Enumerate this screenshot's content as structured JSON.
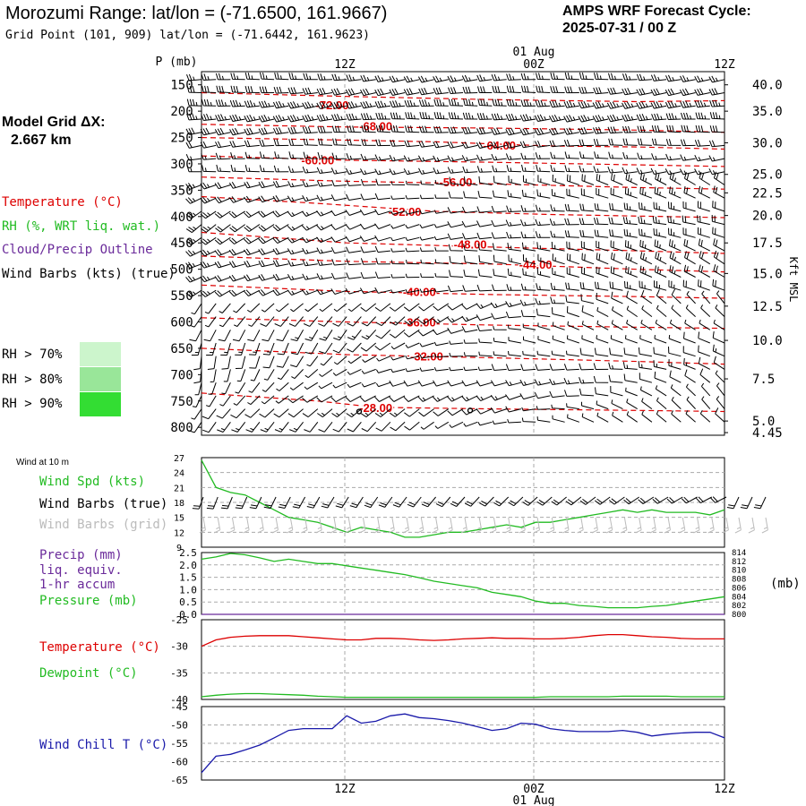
{
  "header": {
    "title": "Morozumi Range:  lat/lon = (-71.6500, 161.9667)",
    "grid_point": "Grid Point (101, 909) lat/lon = (-71.6442, 161.9623)",
    "cycle_label": "AMPS WRF Forecast Cycle:",
    "cycle_value": "2025-07-31 / 00  Z",
    "model_grid_label": "Model Grid ΔX:",
    "model_grid_value": "2.667 km"
  },
  "colors": {
    "temperature": "#dd0000",
    "rh": "#22bb22",
    "cloud": "#6a2a9a",
    "wind": "#000000",
    "grid": "#aaaaaa",
    "windchill": "#1a1aaa",
    "rh70": "#ccf5cc",
    "rh80": "#99e699",
    "rh90": "#33dd33"
  },
  "legend": {
    "temperature": "Temperature (°C)",
    "rh": "RH (%, WRT liq. wat.)",
    "cloud": "Cloud/Precip Outline",
    "wind": "Wind Barbs (kts) (true)",
    "rh70": "RH > 70%",
    "rh80": "RH > 80%",
    "rh90": "RH > 90%"
  },
  "time_axis": {
    "ticks": [
      "12Z",
      "00Z",
      "12Z"
    ],
    "date_label": "01 Aug"
  },
  "chart_data": [
    {
      "type": "line",
      "panel": "upper-air cross-section",
      "ylabel": "P (mb)",
      "y2label": "Kft MSL",
      "y_ticks": [
        150,
        200,
        250,
        300,
        350,
        400,
        450,
        500,
        550,
        600,
        650,
        700,
        750,
        800
      ],
      "kft_ticks": [
        {
          "p": 150,
          "label": "40.0"
        },
        {
          "p": 200,
          "label": "35.0"
        },
        {
          "p": 260,
          "label": "30.0"
        },
        {
          "p": 320,
          "label": "25.0"
        },
        {
          "p": 355,
          "label": "22.5"
        },
        {
          "p": 398,
          "label": "20.0"
        },
        {
          "p": 450,
          "label": "17.5"
        },
        {
          "p": 508,
          "label": "15.0"
        },
        {
          "p": 570,
          "label": "12.5"
        },
        {
          "p": 635,
          "label": "10.0"
        },
        {
          "p": 708,
          "label": "7.5"
        },
        {
          "p": 788,
          "label": "5.0"
        },
        {
          "p": 810,
          "label": "4.45"
        }
      ],
      "temperature_contours": [
        {
          "label": "-72.00",
          "label_at": [
            9,
            188
          ],
          "points": [
            [
              0,
              165
            ],
            [
              10,
              172
            ],
            [
              20,
              178
            ],
            [
              30,
              182
            ],
            [
              36,
              180
            ]
          ]
        },
        {
          "label": "-68.00",
          "label_at": [
            12,
            228
          ],
          "points": [
            [
              0,
              225
            ],
            [
              10,
              230
            ],
            [
              20,
              232
            ],
            [
              30,
              236
            ],
            [
              36,
              240
            ]
          ]
        },
        {
          "label": "-64.00",
          "label_at": [
            20.5,
            264
          ],
          "points": [
            [
              0,
              250
            ],
            [
              8,
              254
            ],
            [
              16,
              258
            ],
            [
              24,
              266
            ],
            [
              30,
              268
            ],
            [
              36,
              272
            ]
          ]
        },
        {
          "label": "-60.00",
          "label_at": [
            8,
            292
          ],
          "points": [
            [
              0,
              285
            ],
            [
              10,
              293
            ],
            [
              20,
              297
            ],
            [
              30,
              302
            ],
            [
              36,
              305
            ]
          ]
        },
        {
          "label": "-56.00",
          "label_at": [
            17.5,
            334
          ],
          "points": [
            [
              0,
              325
            ],
            [
              10,
              333
            ],
            [
              20,
              338
            ],
            [
              30,
              345
            ],
            [
              36,
              348
            ]
          ]
        },
        {
          "label": "-52.00",
          "label_at": [
            14,
            390
          ],
          "points": [
            [
              0,
              362
            ],
            [
              8,
              375
            ],
            [
              16,
              390
            ],
            [
              24,
              396
            ],
            [
              36,
              402
            ]
          ]
        },
        {
          "label": "-48.00",
          "label_at": [
            18.5,
            452
          ],
          "points": [
            [
              0,
              430
            ],
            [
              10,
              450
            ],
            [
              20,
              458
            ],
            [
              30,
              465
            ],
            [
              36,
              470
            ]
          ]
        },
        {
          "label": "-44.00",
          "label_at": [
            23,
            490
          ],
          "points": [
            [
              0,
              475
            ],
            [
              10,
              485
            ],
            [
              20,
              490
            ],
            [
              30,
              500
            ],
            [
              36,
              505
            ]
          ]
        },
        {
          "label": "-40.00",
          "label_at": [
            15,
            542
          ],
          "points": [
            [
              0,
              530
            ],
            [
              10,
              542
            ],
            [
              20,
              548
            ],
            [
              30,
              552
            ],
            [
              36,
              555
            ]
          ]
        },
        {
          "label": "-36.00",
          "label_at": [
            15,
            600
          ],
          "points": [
            [
              0,
              592
            ],
            [
              10,
              600
            ],
            [
              20,
              606
            ],
            [
              30,
              610
            ],
            [
              36,
              612
            ]
          ]
        },
        {
          "label": "-32.00",
          "label_at": [
            15.5,
            665
          ],
          "points": [
            [
              0,
              650
            ],
            [
              10,
              662
            ],
            [
              20,
              668
            ],
            [
              30,
              675
            ],
            [
              36,
              680
            ]
          ]
        },
        {
          "label": "-28.00",
          "label_at": [
            12,
            762
          ],
          "points": [
            [
              0,
              735
            ],
            [
              8,
              750
            ],
            [
              12,
              762
            ],
            [
              20,
              765
            ],
            [
              30,
              768
            ],
            [
              36,
              770
            ]
          ]
        }
      ],
      "rh_fill": []
    },
    {
      "type": "line",
      "panel": "10 m wind",
      "title": "Wind at 10 m",
      "legend": [
        "Wind Spd (kts)",
        "Wind Barbs (true)",
        "Wind Barbs (grid)"
      ],
      "y_ticks": [
        9,
        12,
        15,
        18,
        21,
        24,
        27
      ],
      "ylim": [
        9,
        27
      ],
      "x": [
        0,
        1,
        2,
        3,
        4,
        5,
        6,
        7,
        8,
        9,
        10,
        11,
        12,
        13,
        14,
        15,
        16,
        17,
        18,
        19,
        20,
        21,
        22,
        23,
        24,
        25,
        26,
        27,
        28,
        29,
        30,
        31,
        32,
        33,
        34,
        35,
        36
      ],
      "values": [
        26.5,
        21,
        20,
        19.5,
        18,
        16.5,
        15,
        14.5,
        14,
        13,
        12,
        13,
        12.5,
        12,
        11,
        11,
        11.5,
        12,
        12,
        12.5,
        13,
        13.5,
        13,
        14,
        14,
        14.5,
        15,
        15.5,
        16,
        16.5,
        16,
        16.5,
        16,
        16,
        16,
        15.5,
        16.5
      ]
    },
    {
      "type": "line",
      "panel": "precip and pressure",
      "legend": [
        "Precip (mm)",
        "liq. equiv.",
        "1-hr accum",
        "Pressure (mb)"
      ],
      "y_ticks": [
        "0.0",
        "0.5",
        "1.0",
        "1.5",
        "2.0",
        "2.5"
      ],
      "ylim": [
        0,
        2.5
      ],
      "y2_ticks": [
        800,
        802,
        804,
        806,
        808,
        810,
        812,
        814
      ],
      "y2lim": [
        800,
        814
      ],
      "y2label": "(mb)",
      "precip_values": [
        0,
        0,
        0,
        0,
        0,
        0,
        0,
        0,
        0,
        0,
        0,
        0,
        0,
        0,
        0,
        0,
        0,
        0,
        0,
        0,
        0,
        0,
        0,
        0,
        0,
        0,
        0,
        0,
        0,
        0,
        0,
        0,
        0,
        0,
        0,
        0,
        0
      ],
      "pressure_values": [
        812.5,
        813,
        813.8,
        813.5,
        812.8,
        812,
        812.5,
        812,
        811.5,
        811.5,
        811,
        810.5,
        810,
        809.5,
        809,
        808.3,
        807.5,
        807,
        806.5,
        806,
        805,
        804.5,
        804,
        803,
        802.5,
        802.5,
        802,
        801.8,
        801.5,
        801.5,
        801.5,
        801.8,
        802,
        802.5,
        803,
        803.5,
        804
      ]
    },
    {
      "type": "line",
      "panel": "temperature and dewpoint",
      "legend": [
        "Temperature (°C)",
        "Dewpoint (°C)"
      ],
      "y_ticks": [
        -40,
        -35,
        -30,
        -25
      ],
      "ylim": [
        -40,
        -25
      ],
      "temperature_values": [
        -30,
        -28.8,
        -28.3,
        -28.1,
        -28,
        -28,
        -28,
        -28.2,
        -28.4,
        -28.6,
        -28.8,
        -28.8,
        -28.5,
        -28.5,
        -28.6,
        -28.8,
        -28.9,
        -28.8,
        -28.6,
        -28.5,
        -28.4,
        -28.5,
        -28.5,
        -28.6,
        -28.6,
        -28.5,
        -28.3,
        -28,
        -27.8,
        -27.8,
        -28,
        -28.2,
        -28.3,
        -28.5,
        -28.6,
        -28.6,
        -28.6
      ],
      "dewpoint_values": [
        -39.5,
        -39.2,
        -39,
        -38.9,
        -38.9,
        -39,
        -39.1,
        -39.2,
        -39.4,
        -39.5,
        -39.6,
        -39.6,
        -39.6,
        -39.6,
        -39.6,
        -39.6,
        -39.6,
        -39.6,
        -39.6,
        -39.6,
        -39.6,
        -39.6,
        -39.6,
        -39.6,
        -39.5,
        -39.5,
        -39.5,
        -39.5,
        -39.5,
        -39.4,
        -39.4,
        -39.4,
        -39.4,
        -39.5,
        -39.5,
        -39.5,
        -39.5
      ]
    },
    {
      "type": "line",
      "panel": "wind chill",
      "legend": [
        "Wind Chill T (°C)"
      ],
      "y_ticks": [
        -65,
        -60,
        -55,
        -50,
        -45
      ],
      "ylim": [
        -65,
        -45
      ],
      "values": [
        -63,
        -58.5,
        -58,
        -56.8,
        -55.5,
        -53.5,
        -51.5,
        -51,
        -51,
        -51,
        -47.5,
        -49.5,
        -49,
        -47.5,
        -47,
        -48,
        -48.3,
        -48.8,
        -49.5,
        -50.5,
        -51.5,
        -51,
        -49.5,
        -49.8,
        -51,
        -51.5,
        -51.8,
        -51.8,
        -51.8,
        -51.5,
        -52,
        -53,
        -52.5,
        -52.2,
        -52,
        -52,
        -53.5
      ]
    }
  ]
}
